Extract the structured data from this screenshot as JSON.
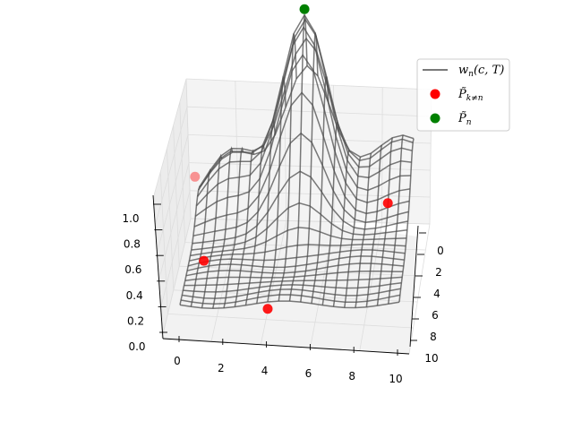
{
  "chart_data": {
    "type": "surface3d",
    "x_ticks": [
      "0",
      "2",
      "4",
      "6",
      "8",
      "10"
    ],
    "y_ticks": [
      "0",
      "2",
      "4",
      "6",
      "8",
      "10"
    ],
    "z_ticks": [
      "0.0",
      "0.2",
      "0.4",
      "0.6",
      "0.8",
      "1.0"
    ],
    "xlim": [
      0,
      10
    ],
    "ylim": [
      0,
      10
    ],
    "zlim": [
      0,
      1.1
    ],
    "grid": true,
    "legend_position": "top-right",
    "surface": {
      "name": "w_n(c, T)",
      "color": "#4d4d4d",
      "grid_size": 21,
      "peak": {
        "x": 5.0,
        "y": 1.5,
        "z": 1.0
      },
      "base_level": 0.08
    },
    "points_other": {
      "name": "P_{k≠n}",
      "color": "#ff0000",
      "points": [
        {
          "x": 0.5,
          "y": 8.0,
          "z": 0.58
        },
        {
          "x": 1.0,
          "y": 9.0,
          "z": 0.23
        },
        {
          "x": 4.0,
          "y": 10.0,
          "z": 0.05
        },
        {
          "x": 9.0,
          "y": 3.0,
          "z": 0.12
        }
      ]
    },
    "points_current": {
      "name": "P_n",
      "color": "#008000",
      "points": [
        {
          "x": 5.0,
          "y": 1.5,
          "z": 1.0
        }
      ]
    }
  }
}
